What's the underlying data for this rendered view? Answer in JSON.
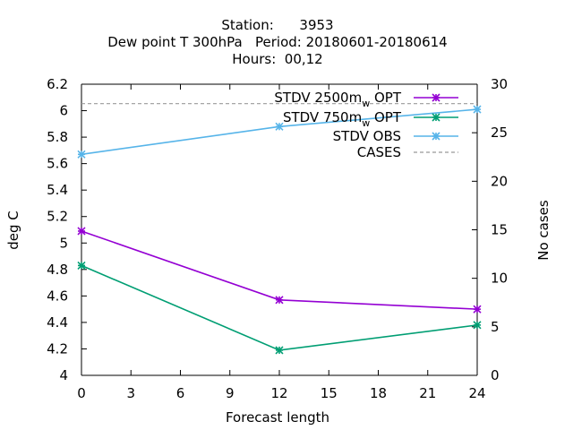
{
  "chart_data": {
    "type": "line",
    "title": {
      "line1": "Station:      3953",
      "line2": "Dew point T 300hPa   Period: 20180601-20180614",
      "line3": "Hours:  00,12"
    },
    "xlabel": "Forecast length",
    "ylabel": "deg C",
    "y2label": "No cases",
    "xlim": [
      0,
      24
    ],
    "ylim": [
      4,
      6.2
    ],
    "y2lim": [
      0,
      30
    ],
    "xticks": [
      "0",
      "3",
      "6",
      "9",
      "12",
      "15",
      "18",
      "21",
      "24"
    ],
    "yticks": [
      "4",
      "4.2",
      "4.4",
      "4.6",
      "4.8",
      "5",
      "5.2",
      "5.4",
      "5.6",
      "5.8",
      "6",
      "6.2"
    ],
    "y2ticks": [
      "0",
      "5",
      "10",
      "15",
      "20",
      "25",
      "30"
    ],
    "grid": false,
    "legend_position": "top-right",
    "series": [
      {
        "name": "STDV 2500m",
        "name_sub": "w",
        "name_suffix": " OPT",
        "color": "#9400d3",
        "marker": "star",
        "axis": "y",
        "x": [
          0,
          12,
          24
        ],
        "y": [
          5.09,
          4.57,
          4.5
        ]
      },
      {
        "name": "STDV 750m",
        "name_sub": "w",
        "name_suffix": " OPT",
        "color": "#009e73",
        "marker": "star",
        "axis": "y",
        "x": [
          0,
          12,
          24
        ],
        "y": [
          4.83,
          4.19,
          4.38
        ]
      },
      {
        "name": "STDV OBS",
        "color": "#56b4e9",
        "marker": "star",
        "axis": "y",
        "x": [
          0,
          12,
          24
        ],
        "y": [
          5.67,
          5.88,
          6.01
        ]
      },
      {
        "name": "CASES",
        "color": "#999999",
        "dash": true,
        "axis": "y2",
        "x": [
          0,
          12,
          24
        ],
        "y": [
          28,
          28,
          28
        ]
      }
    ]
  }
}
